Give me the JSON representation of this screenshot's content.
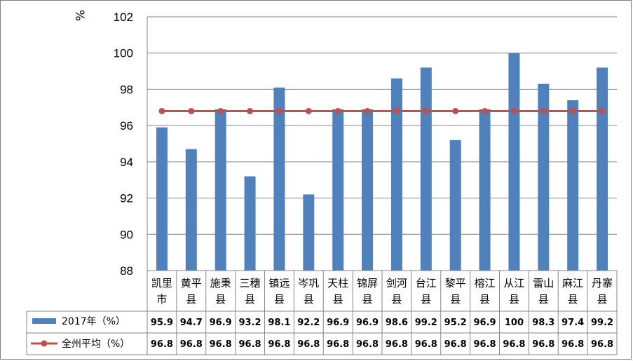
{
  "chart_data": {
    "type": "bar",
    "unit_label": "%",
    "categories": [
      "凯里市",
      "黄平县",
      "施秉县",
      "三穗县",
      "镇远县",
      "岑巩县",
      "天柱县",
      "锦屏县",
      "剑河县",
      "台江县",
      "黎平县",
      "榕江县",
      "从江县",
      "雷山县",
      "麻江县",
      "丹寨县"
    ],
    "category_lines": [
      [
        "凯里",
        "市"
      ],
      [
        "黄平",
        "县"
      ],
      [
        "施秉",
        "县"
      ],
      [
        "三穗",
        "县"
      ],
      [
        "镇远",
        "县"
      ],
      [
        "岑巩",
        "县"
      ],
      [
        "天柱",
        "县"
      ],
      [
        "锦屏",
        "县"
      ],
      [
        "剑河",
        "县"
      ],
      [
        "台江",
        "县"
      ],
      [
        "黎平",
        "县"
      ],
      [
        "榕江",
        "县"
      ],
      [
        "从江",
        "县"
      ],
      [
        "雷山",
        "县"
      ],
      [
        "麻江",
        "县"
      ],
      [
        "丹寨",
        "县"
      ]
    ],
    "series": [
      {
        "name": "2017年（%）",
        "kind": "bar",
        "color": "#4F81BD",
        "values": [
          95.9,
          94.7,
          96.9,
          93.2,
          98.1,
          92.2,
          96.9,
          96.9,
          98.6,
          99.2,
          95.2,
          96.9,
          100,
          98.3,
          97.4,
          99.2
        ],
        "labels": [
          "95.9",
          "94.7",
          "96.9",
          "93.2",
          "98.1",
          "92.2",
          "96.9",
          "96.9",
          "98.6",
          "99.2",
          "95.2",
          "96.9",
          "100",
          "98.3",
          "97.4",
          "99.2"
        ]
      },
      {
        "name": "全州平均（%）",
        "kind": "line",
        "color": "#C0504D",
        "values": [
          96.8,
          96.8,
          96.8,
          96.8,
          96.8,
          96.8,
          96.8,
          96.8,
          96.8,
          96.8,
          96.8,
          96.8,
          96.8,
          96.8,
          96.8,
          96.8
        ],
        "labels": [
          "96.8",
          "96.8",
          "96.8",
          "96.8",
          "96.8",
          "96.8",
          "96.8",
          "96.8",
          "96.8",
          "96.8",
          "96.8",
          "96.8",
          "96.8",
          "96.8",
          "96.8",
          "96.8"
        ]
      }
    ],
    "ylim": [
      88,
      102
    ],
    "yticks": [
      "88",
      "90",
      "92",
      "94",
      "96",
      "98",
      "100",
      "102"
    ],
    "grid": true,
    "data_table": true
  }
}
